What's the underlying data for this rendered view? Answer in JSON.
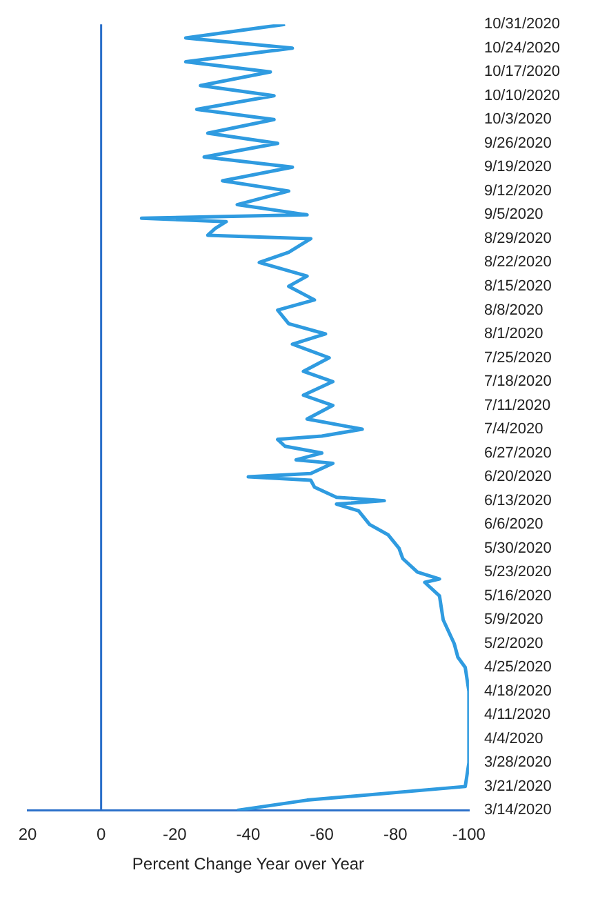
{
  "chart_data": {
    "type": "line",
    "xlabel": "Percent Change Year over Year",
    "ref_lines": [
      {
        "axis": "x",
        "value": 0,
        "color": "#2a6fc9"
      }
    ],
    "x": [
      "2020-03-14",
      "2020-03-17",
      "2020-03-21",
      "2020-03-28",
      "2020-04-04",
      "2020-04-11",
      "2020-04-18",
      "2020-04-25",
      "2020-04-28",
      "2020-05-02",
      "2020-05-09",
      "2020-05-16",
      "2020-05-20",
      "2020-05-21",
      "2020-05-23",
      "2020-05-27",
      "2020-05-30",
      "2020-06-03",
      "2020-06-06",
      "2020-06-10",
      "2020-06-12",
      "2020-06-13",
      "2020-06-14",
      "2020-06-17",
      "2020-06-19",
      "2020-06-20",
      "2020-06-21",
      "2020-06-24",
      "2020-06-25",
      "2020-06-27",
      "2020-06-29",
      "2020-07-01",
      "2020-07-02",
      "2020-07-04",
      "2020-07-07",
      "2020-07-11",
      "2020-07-14",
      "2020-07-18",
      "2020-07-21",
      "2020-07-25",
      "2020-07-29",
      "2020-08-01",
      "2020-08-04",
      "2020-08-08",
      "2020-08-11",
      "2020-08-15",
      "2020-08-18",
      "2020-08-22",
      "2020-08-25",
      "2020-08-29",
      "2020-08-30",
      "2020-09-01",
      "2020-09-03",
      "2020-09-04",
      "2020-09-05",
      "2020-09-08",
      "2020-09-12",
      "2020-09-15",
      "2020-09-19",
      "2020-09-22",
      "2020-09-26",
      "2020-09-29",
      "2020-10-03",
      "2020-10-06",
      "2020-10-10",
      "2020-10-13",
      "2020-10-17",
      "2020-10-20",
      "2020-10-24",
      "2020-10-27",
      "2020-10-31"
    ],
    "series": [
      {
        "color": "#2f9be0",
        "values": [
          -37,
          -56,
          -99,
          -100,
          -100,
          -100,
          -100,
          -99,
          -97,
          -96,
          -93,
          -92,
          -88,
          -92,
          -86,
          -82,
          -81,
          -78,
          -73,
          -70,
          -64,
          -77,
          -64,
          -58,
          -57,
          -40,
          -57,
          -63,
          -53,
          -60,
          -50,
          -48,
          -60,
          -71,
          -56,
          -63,
          -55,
          -63,
          -55,
          -62,
          -52,
          -61,
          -51,
          -48,
          -58,
          -51,
          -56,
          -43,
          -51,
          -57,
          -29,
          -31,
          -34,
          -11,
          -56,
          -37,
          -51,
          -33,
          -52,
          -28,
          -48,
          -29,
          -47,
          -26,
          -47,
          -27,
          -46,
          -23,
          -52,
          -23,
          -50
        ]
      }
    ],
    "orientation": "horizontal",
    "ylim": [
      "2020-03-14",
      "2020-10-31"
    ],
    "yticks": [
      {
        "value": "2020-03-14",
        "label": "3/14/2020"
      },
      {
        "value": "2020-03-21",
        "label": "3/21/2020"
      },
      {
        "value": "2020-03-28",
        "label": "3/28/2020"
      },
      {
        "value": "2020-04-04",
        "label": "4/4/2020"
      },
      {
        "value": "2020-04-11",
        "label": "4/11/2020"
      },
      {
        "value": "2020-04-18",
        "label": "4/18/2020"
      },
      {
        "value": "2020-04-25",
        "label": "4/25/2020"
      },
      {
        "value": "2020-05-02",
        "label": "5/2/2020"
      },
      {
        "value": "2020-05-09",
        "label": "5/9/2020"
      },
      {
        "value": "2020-05-16",
        "label": "5/16/2020"
      },
      {
        "value": "2020-05-23",
        "label": "5/23/2020"
      },
      {
        "value": "2020-05-30",
        "label": "5/30/2020"
      },
      {
        "value": "2020-06-06",
        "label": "6/6/2020"
      },
      {
        "value": "2020-06-13",
        "label": "6/13/2020"
      },
      {
        "value": "2020-06-20",
        "label": "6/20/2020"
      },
      {
        "value": "2020-06-27",
        "label": "6/27/2020"
      },
      {
        "value": "2020-07-04",
        "label": "7/4/2020"
      },
      {
        "value": "2020-07-11",
        "label": "7/11/2020"
      },
      {
        "value": "2020-07-18",
        "label": "7/18/2020"
      },
      {
        "value": "2020-07-25",
        "label": "7/25/2020"
      },
      {
        "value": "2020-08-01",
        "label": "8/1/2020"
      },
      {
        "value": "2020-08-08",
        "label": "8/8/2020"
      },
      {
        "value": "2020-08-15",
        "label": "8/15/2020"
      },
      {
        "value": "2020-08-22",
        "label": "8/22/2020"
      },
      {
        "value": "2020-08-29",
        "label": "8/29/2020"
      },
      {
        "value": "2020-09-05",
        "label": "9/5/2020"
      },
      {
        "value": "2020-09-12",
        "label": "9/12/2020"
      },
      {
        "value": "2020-09-19",
        "label": "9/19/2020"
      },
      {
        "value": "2020-09-26",
        "label": "9/26/2020"
      },
      {
        "value": "2020-10-03",
        "label": "10/3/2020"
      },
      {
        "value": "2020-10-10",
        "label": "10/10/2020"
      },
      {
        "value": "2020-10-17",
        "label": "10/17/2020"
      },
      {
        "value": "2020-10-24",
        "label": "10/24/2020"
      },
      {
        "value": "2020-10-31",
        "label": "10/31/2020"
      }
    ],
    "xlim": [
      20,
      -100
    ],
    "xticks": [
      20,
      0,
      -20,
      -40,
      -60,
      -80,
      -100
    ],
    "marker": "none"
  }
}
